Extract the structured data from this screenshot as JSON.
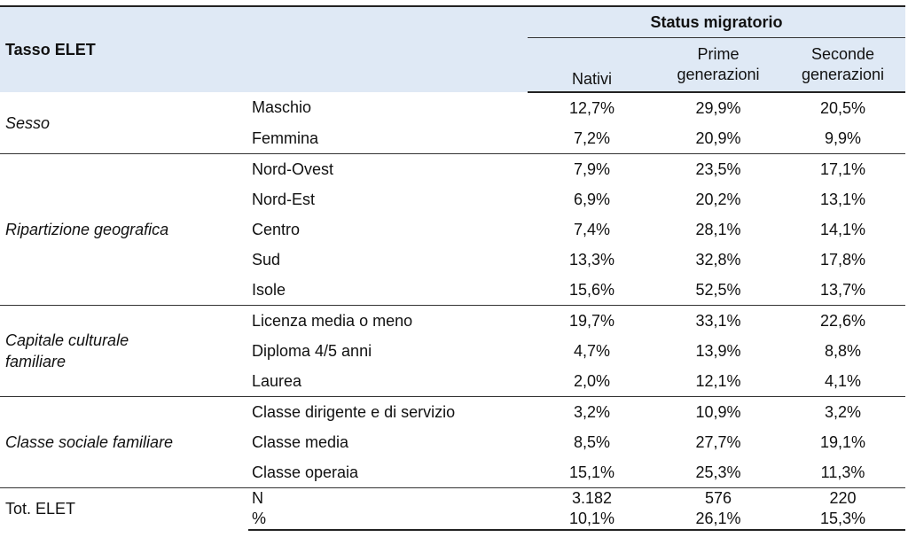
{
  "header": {
    "tasso": "Tasso ELET",
    "status": "Status migratorio",
    "col_nativi": "Nativi",
    "col_prime_1": "Prime",
    "col_prime_2": "generazioni",
    "col_seconde_1": "Seconde",
    "col_seconde_2": "generazioni"
  },
  "groups": {
    "sesso": {
      "label": "Sesso",
      "rows": [
        {
          "cat": "Maschio",
          "nativi": "12,7%",
          "prime": "29,9%",
          "seconde": "20,5%"
        },
        {
          "cat": "Femmina",
          "nativi": "7,2%",
          "prime": "20,9%",
          "seconde": "9,9%"
        }
      ]
    },
    "ripartizione": {
      "label": "Ripartizione geografica",
      "rows": [
        {
          "cat": "Nord-Ovest",
          "nativi": "7,9%",
          "prime": "23,5%",
          "seconde": "17,1%"
        },
        {
          "cat": "Nord-Est",
          "nativi": "6,9%",
          "prime": "20,2%",
          "seconde": "13,1%"
        },
        {
          "cat": "Centro",
          "nativi": "7,4%",
          "prime": "28,1%",
          "seconde": "14,1%"
        },
        {
          "cat": "Sud",
          "nativi": "13,3%",
          "prime": "32,8%",
          "seconde": "17,8%"
        },
        {
          "cat": "Isole",
          "nativi": "15,6%",
          "prime": "52,5%",
          "seconde": "13,7%"
        }
      ]
    },
    "capitale": {
      "label_1": "Capitale culturale",
      "label_2": "familiare",
      "rows": [
        {
          "cat": "Licenza media o meno",
          "nativi": "19,7%",
          "prime": "33,1%",
          "seconde": "22,6%"
        },
        {
          "cat": "Diploma 4/5 anni",
          "nativi": "4,7%",
          "prime": "13,9%",
          "seconde": "8,8%"
        },
        {
          "cat": "Laurea",
          "nativi": "2,0%",
          "prime": "12,1%",
          "seconde": "4,1%"
        }
      ]
    },
    "classe": {
      "label": "Classe sociale familiare",
      "rows": [
        {
          "cat": "Classe dirigente e di servizio",
          "nativi": "3,2%",
          "prime": "10,9%",
          "seconde": "3,2%"
        },
        {
          "cat": "Classe media",
          "nativi": "8,5%",
          "prime": "27,7%",
          "seconde": "19,1%"
        },
        {
          "cat": "Classe operaia",
          "nativi": "15,1%",
          "prime": "25,3%",
          "seconde": "11,3%"
        }
      ]
    },
    "totale": {
      "label": "Tot. ELET",
      "rows": [
        {
          "cat": "N",
          "nativi": "3.182",
          "prime": "576",
          "seconde": "220"
        },
        {
          "cat": "%",
          "nativi": "10,1%",
          "prime": "26,1%",
          "seconde": "15,3%"
        }
      ]
    }
  }
}
